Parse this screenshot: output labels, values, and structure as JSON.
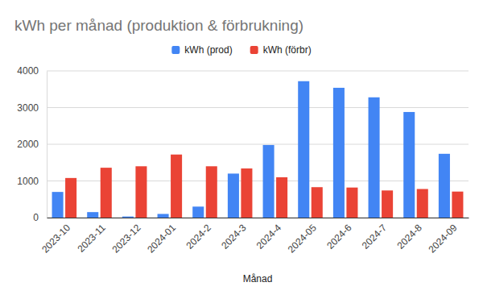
{
  "chart_data": {
    "type": "bar",
    "title": "kWh per månad (produktion & förbrukning)",
    "x_label": "Månad",
    "categories": [
      "2023-10",
      "2023-11",
      "2023-12",
      "2024-01",
      "2024-2",
      "2024-3",
      "2024-4",
      "2024-05",
      "2024-6",
      "2024-7",
      "2024-8",
      "2024-09"
    ],
    "series": [
      {
        "name": "kWh (prod)",
        "color": "#4285f4",
        "values": [
          700,
          150,
          30,
          100,
          300,
          1200,
          1980,
          3720,
          3540,
          3280,
          2880,
          1740
        ]
      },
      {
        "name": "kWh (förbr)",
        "color": "#ea4335",
        "values": [
          1080,
          1360,
          1400,
          1720,
          1400,
          1340,
          1100,
          830,
          820,
          740,
          780,
          710
        ]
      }
    ],
    "ylim": [
      0,
      4000
    ],
    "yticks": [
      0,
      1000,
      2000,
      3000,
      4000
    ],
    "grid": true,
    "legend": "top"
  }
}
